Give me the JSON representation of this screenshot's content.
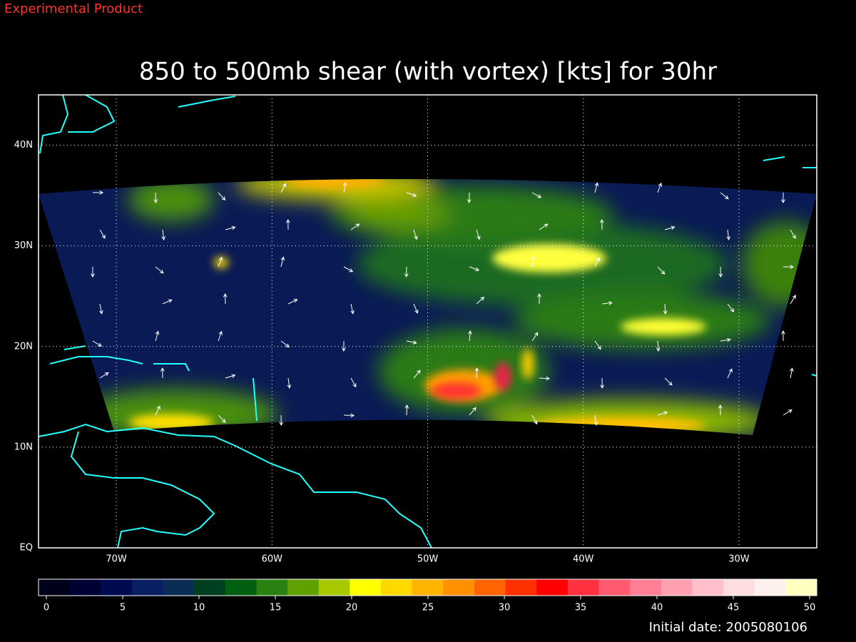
{
  "header": {
    "label": "Experimental Product"
  },
  "title": "850 to 500mb shear (with vortex) [kts] for 30hr",
  "map": {
    "xlim": [
      -75,
      -25
    ],
    "ylim": [
      0,
      45
    ],
    "xticks": [
      {
        "value": -70,
        "label": "70W"
      },
      {
        "value": -60,
        "label": "60W"
      },
      {
        "value": -50,
        "label": "50W"
      },
      {
        "value": -40,
        "label": "40W"
      },
      {
        "value": -30,
        "label": "30W"
      }
    ],
    "yticks": [
      {
        "value": 0,
        "label": "EQ"
      },
      {
        "value": 10,
        "label": "10N"
      },
      {
        "value": 20,
        "label": "20N"
      },
      {
        "value": 30,
        "label": "30N"
      },
      {
        "value": 40,
        "label": "40N"
      }
    ],
    "grid": true
  },
  "colorbar": {
    "lim": [
      0,
      50
    ],
    "ticks": [
      0,
      5,
      10,
      15,
      20,
      25,
      30,
      35,
      40,
      45,
      50
    ],
    "colors": [
      "#00001a",
      "#000033",
      "#000a50",
      "#0a1e64",
      "#0a2d55",
      "#004020",
      "#006010",
      "#2a8010",
      "#60a000",
      "#a8c800",
      "#ffff00",
      "#ffd800",
      "#ffb400",
      "#ff9000",
      "#ff6400",
      "#ff3000",
      "#ff0000",
      "#ff3040",
      "#ff5a6e",
      "#ff8096",
      "#ffa0b0",
      "#ffc0cc",
      "#ffdce0",
      "#fff0f0",
      "#ffffc0"
    ]
  },
  "footer": {
    "initial_date": "Initial date: 2005080106"
  }
}
